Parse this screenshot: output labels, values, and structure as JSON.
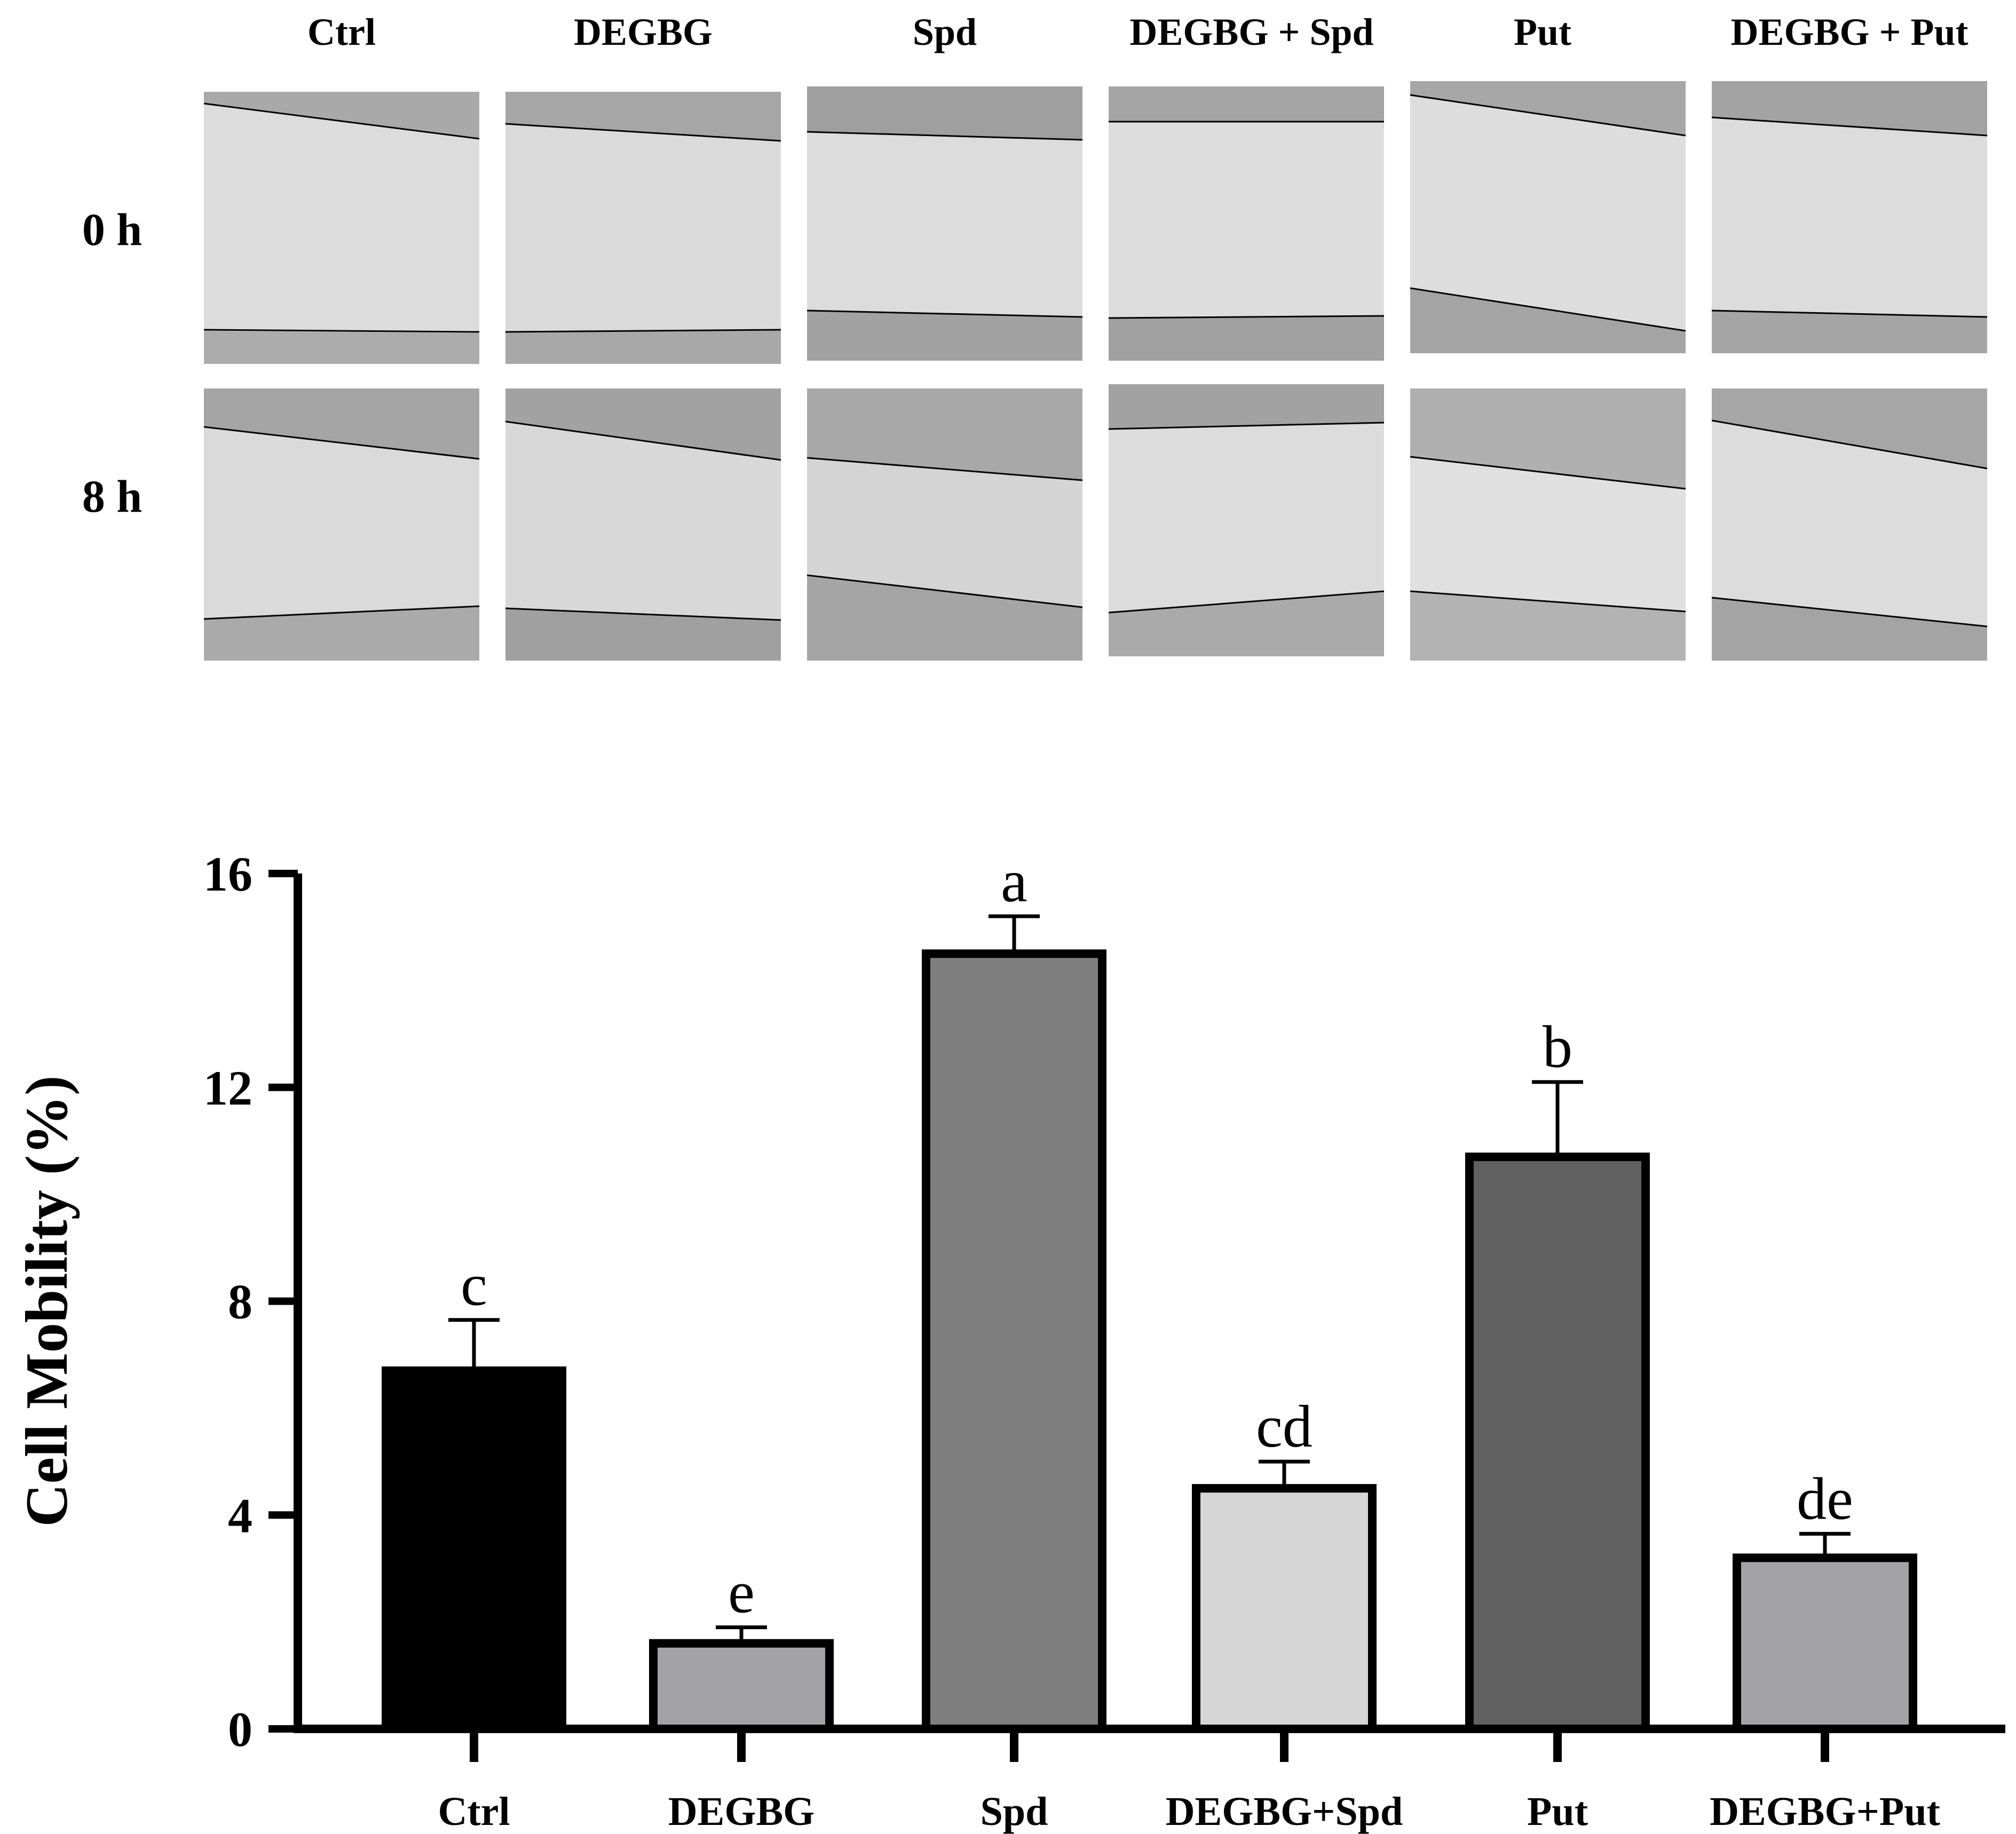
{
  "figure": {
    "column_labels": [
      "Ctrl",
      "DEGBG",
      "Spd",
      "DEGBG + Spd",
      "Put",
      "DEGBG + Put"
    ],
    "row_labels": [
      "0 h",
      "8 h"
    ]
  },
  "chart_data": {
    "type": "bar",
    "title": "",
    "xlabel": "",
    "ylabel": "Cell Mobility (%)",
    "ylim": [
      0,
      16
    ],
    "yticks": [
      0,
      4,
      8,
      12,
      16
    ],
    "grid": false,
    "categories": [
      "Ctrl",
      "DEGBG",
      "Spd",
      "DEGBG+Spd",
      "Put",
      "DEGBG+Put"
    ],
    "values": [
      6.7,
      1.6,
      14.5,
      4.5,
      10.7,
      3.2
    ],
    "errors": [
      0.95,
      0.3,
      0.7,
      0.5,
      1.4,
      0.45
    ],
    "significance": [
      "c",
      "e",
      "a",
      "cd",
      "b",
      "de"
    ],
    "colors": [
      "#000000",
      "#a3a3a6",
      "#7f7f7f",
      "#d6d6d6",
      "#606060",
      "#a3a3a6"
    ]
  }
}
